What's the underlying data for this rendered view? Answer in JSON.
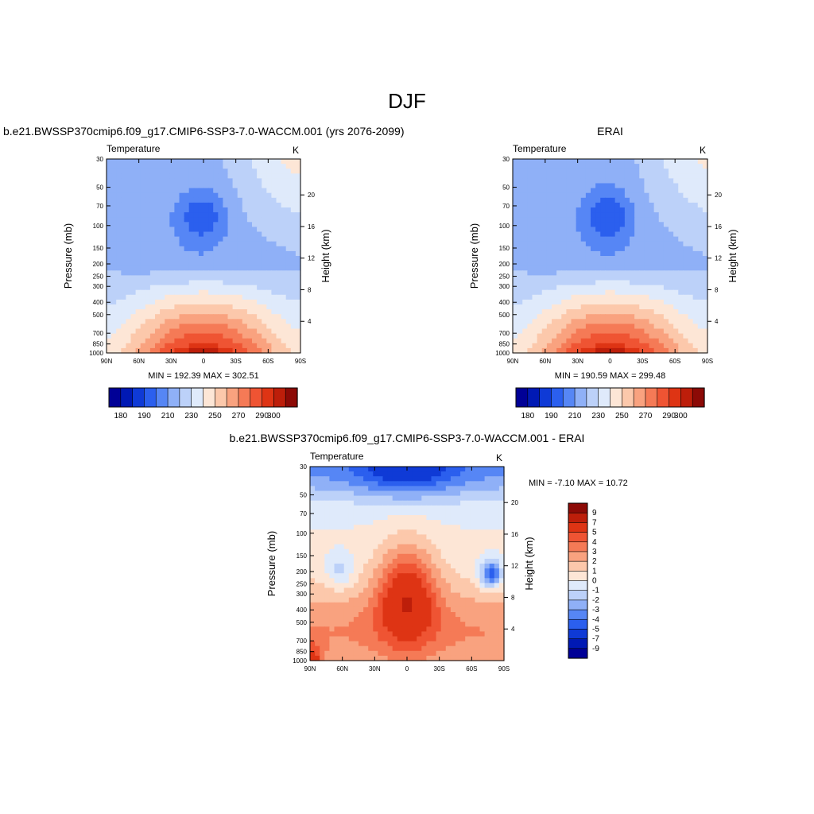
{
  "page_title": "DJF",
  "colors": {
    "abs_scale": [
      "#000096",
      "#0019b4",
      "#0f3ad6",
      "#2b5fee",
      "#5686f5",
      "#8fb0f7",
      "#bcd1f9",
      "#dfeafb",
      "#fde6d6",
      "#fcc8ab",
      "#f9a27f",
      "#f57a56",
      "#ef5433",
      "#de3414",
      "#bd1e0a",
      "#8c0a06"
    ],
    "diff_scale": [
      "#000096",
      "#0019b4",
      "#0f3ad6",
      "#2b5fee",
      "#5686f5",
      "#8fb0f7",
      "#bcd1f9",
      "#dfeafb",
      "#fde6d6",
      "#fcc8ab",
      "#f9a27f",
      "#f57a56",
      "#ef5433",
      "#de3414",
      "#bd1e0a",
      "#8c0a06"
    ]
  },
  "chart_data": [
    {
      "type": "heatmap",
      "title": "b.e21.BWSSP370cmip6.f09_g17.CMIP6-SSP3-7.0-WACCM.001 (yrs 2076-2099)",
      "left_label": "Temperature",
      "units": "K",
      "xlabel": "",
      "ylabel": "Pressure (mb)",
      "right_label": "Height (km)",
      "x_ticks": [
        "90N",
        "60N",
        "30N",
        "0",
        "30S",
        "60S",
        "90S"
      ],
      "y_ticks": [
        "30",
        "50",
        "70",
        "100",
        "150",
        "200",
        "250",
        "300",
        "400",
        "500",
        "700",
        "850",
        "1000"
      ],
      "height_ticks": [
        "20",
        "16",
        "12",
        "8",
        "4"
      ],
      "min_max": "MIN = 192.39  MAX = 302.51",
      "colorbar_labels": [
        "180",
        "190",
        "210",
        "230",
        "250",
        "270",
        "290",
        "300"
      ],
      "ylim": [
        1000,
        30
      ]
    },
    {
      "type": "heatmap",
      "title": "ERAI",
      "left_label": "Temperature",
      "units": "K",
      "xlabel": "",
      "ylabel": "Pressure (mb)",
      "right_label": "Height (km)",
      "x_ticks": [
        "90N",
        "60N",
        "30N",
        "0",
        "30S",
        "60S",
        "90S"
      ],
      "y_ticks": [
        "30",
        "50",
        "70",
        "100",
        "150",
        "200",
        "250",
        "300",
        "400",
        "500",
        "700",
        "850",
        "1000"
      ],
      "height_ticks": [
        "20",
        "16",
        "12",
        "8",
        "4"
      ],
      "min_max": "MIN = 190.59  MAX = 299.48",
      "colorbar_labels": [
        "180",
        "190",
        "210",
        "230",
        "250",
        "270",
        "290",
        "300"
      ],
      "ylim": [
        1000,
        30
      ]
    },
    {
      "type": "heatmap",
      "title": "b.e21.BWSSP370cmip6.f09_g17.CMIP6-SSP3-7.0-WACCM.001 - ERAI",
      "left_label": "Temperature",
      "units": "K",
      "xlabel": "",
      "ylabel": "Pressure (mb)",
      "right_label": "Height (km)",
      "x_ticks": [
        "90N",
        "60N",
        "30N",
        "0",
        "30S",
        "60S",
        "90S"
      ],
      "y_ticks": [
        "30",
        "50",
        "70",
        "100",
        "150",
        "200",
        "250",
        "300",
        "400",
        "500",
        "700",
        "850",
        "1000"
      ],
      "height_ticks": [
        "20",
        "16",
        "12",
        "8",
        "4"
      ],
      "min_max": "MIN =  -7.10  MAX =  10.72",
      "colorbar_labels": [
        "9",
        "7",
        "5",
        "4",
        "3",
        "2",
        "1",
        "0",
        "-1",
        "-2",
        "-3",
        "-4",
        "-5",
        "-7",
        "-9"
      ],
      "ylim": [
        1000,
        30
      ]
    }
  ]
}
